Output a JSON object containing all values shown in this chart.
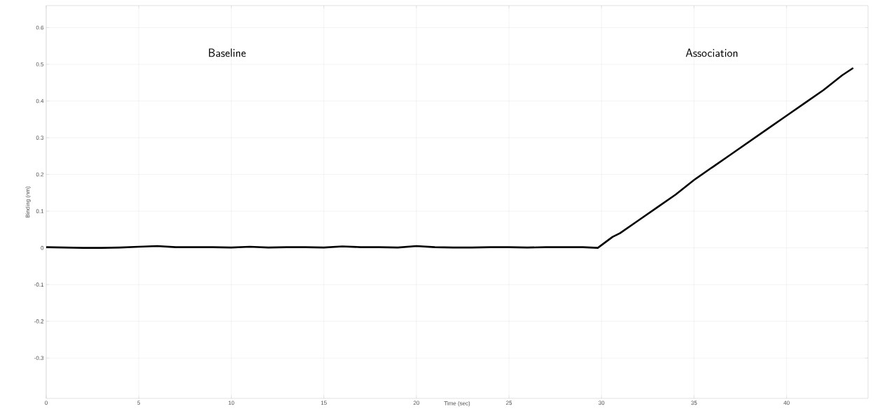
{
  "chart_data": {
    "type": "line",
    "xlabel": "Time (sec)",
    "ylabel": "Binding (nm)",
    "annotations": [
      "Baseline",
      "Association"
    ],
    "x": [
      0,
      1,
      2,
      3,
      4,
      5,
      6,
      7,
      8,
      9,
      10,
      11,
      12,
      13,
      14,
      15,
      16,
      17,
      18,
      19,
      20,
      21,
      22,
      23,
      24,
      25,
      26,
      27,
      28,
      29,
      29.8,
      30.2,
      30.6,
      31,
      32,
      33,
      34,
      35,
      36,
      37,
      38,
      39,
      40,
      41,
      42,
      43,
      43.6
    ],
    "series": [
      {
        "color": "#000000",
        "values": [
          0.002,
          0.001,
          0.0,
          0.0,
          0.001,
          0.003,
          0.005,
          0.002,
          0.002,
          0.002,
          0.001,
          0.003,
          0.001,
          0.002,
          0.002,
          0.001,
          0.004,
          0.002,
          0.002,
          0.001,
          0.005,
          0.002,
          0.001,
          0.001,
          0.002,
          0.002,
          0.001,
          0.002,
          0.002,
          0.002,
          0.0,
          0.015,
          0.03,
          0.04,
          0.075,
          0.11,
          0.145,
          0.185,
          0.22,
          0.255,
          0.29,
          0.325,
          0.36,
          0.395,
          0.43,
          0.47,
          0.49
        ]
      }
    ],
    "xlim": [
      0,
      44.4
    ],
    "ylim": [
      -0.41,
      0.66
    ],
    "xticks": [
      0,
      5,
      10,
      15,
      20,
      25,
      30,
      35,
      40
    ],
    "yticks": [
      -0.3,
      -0.2,
      -0.1,
      0,
      0.1,
      0.2,
      0.3,
      0.4,
      0.5,
      0.6
    ],
    "grid": true,
    "marker": "none",
    "line_style": "solid"
  }
}
